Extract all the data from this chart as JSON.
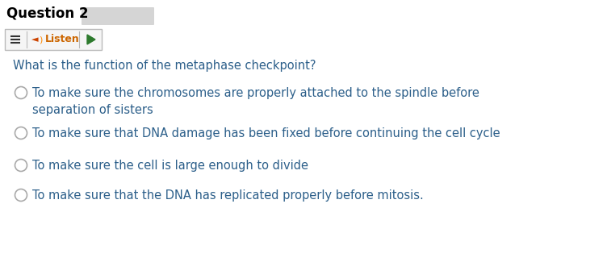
{
  "title": "Question 2",
  "question": "What is the function of the metaphase checkpoint?",
  "options": [
    "To make sure the chromosomes are properly attached to the spindle before\nseparation of sisters",
    "To make sure that DNA damage has been fixed before continuing the cell cycle",
    "To make sure the cell is large enough to divide",
    "To make sure that the DNA has replicated properly before mitosis."
  ],
  "bg_color": "#ffffff",
  "title_color": "#000000",
  "question_color": "#2c5f8a",
  "option_color": "#2c5f8a",
  "title_fontsize": 12,
  "question_fontsize": 10.5,
  "option_fontsize": 10.5,
  "circle_edge_color": "#aaaaaa",
  "circle_face_color": "#ffffff",
  "blurred_area_color": "#c8c8c8",
  "listen_text_color": "#cc6600",
  "toolbar_bg": "#f5f5f5",
  "toolbar_border": "#bbbbbb",
  "hamburger_color": "#333333",
  "speaker_color": "#cc4400",
  "play_color": "#2d7a2d"
}
